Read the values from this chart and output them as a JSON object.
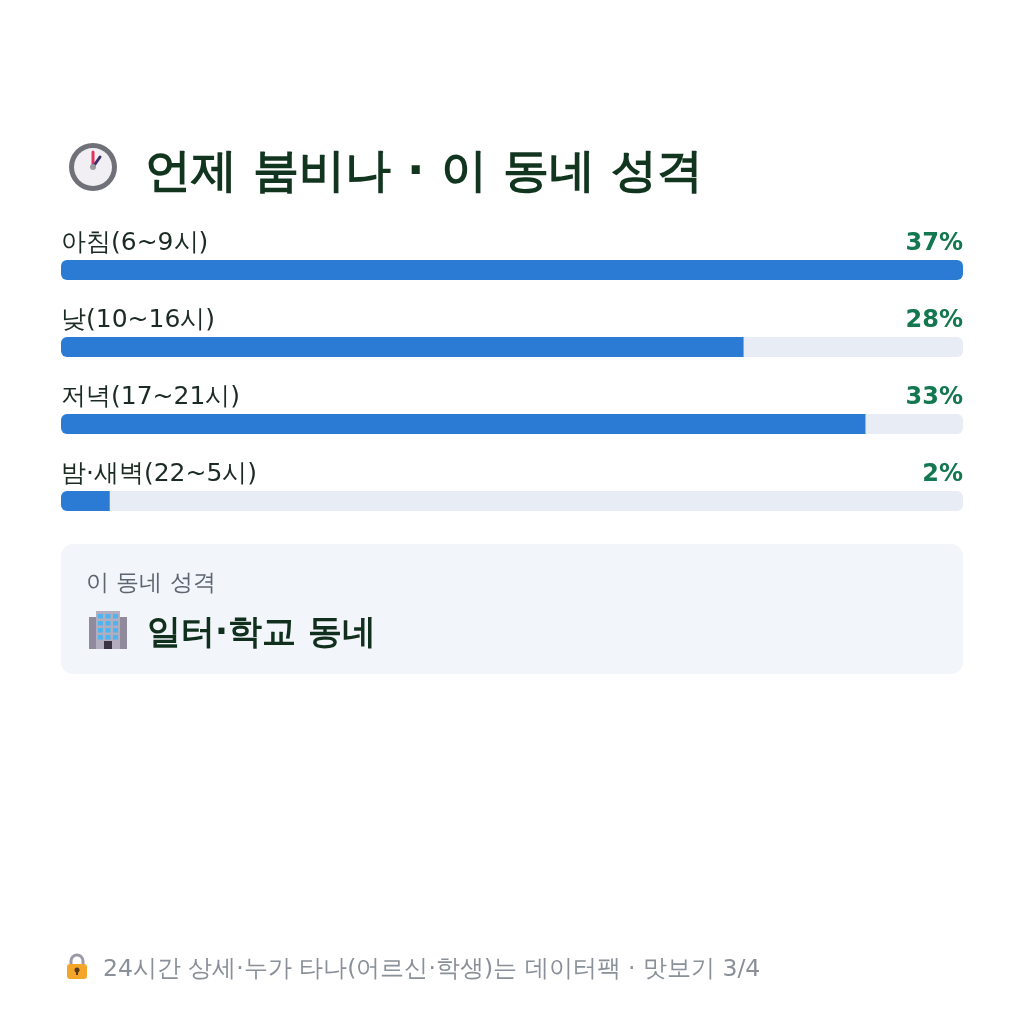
{
  "chart_data": [
    {
      "type": "bar",
      "orientation": "horizontal",
      "title": "언제 붐비나 · 이 동네 성격",
      "categories": [
        "아침(6~9시)",
        "낮(10~16시)",
        "저녁(17~21시)",
        "밤·새벽(22~5시)"
      ],
      "values": [
        37,
        28,
        33,
        2
      ],
      "value_labels": [
        "37%",
        "28%",
        "33%",
        "2%"
      ],
      "color": "#2b7bd4",
      "annotations": [
        "24시간 상세·누가 타나(어르신·학생)는 데이터팩 · 맛보기 3/4"
      ]
    },
    {
      "type": "other",
      "title": "이 동네 성격",
      "annotations": [
        "일터·학교 동네"
      ]
    }
  ]
}
